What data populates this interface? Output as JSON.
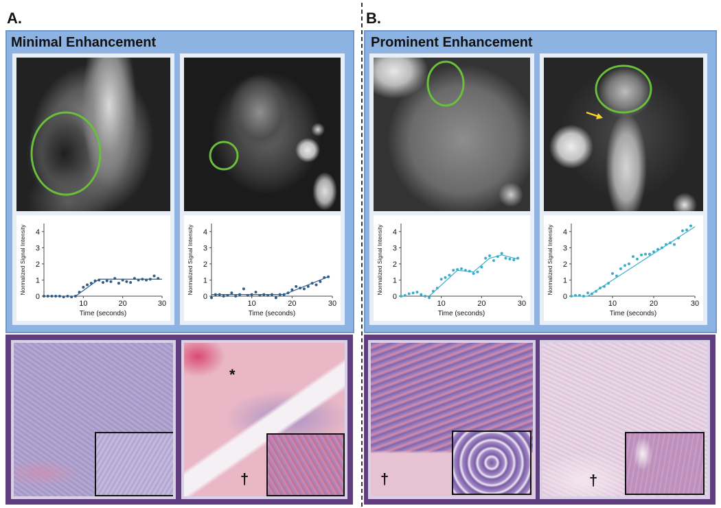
{
  "panels": [
    {
      "letter": "A.",
      "title": "Minimal Enhancement"
    },
    {
      "letter": "B.",
      "title": "Prominent Enhancement"
    }
  ],
  "graph_axes": {
    "ylabel": "Normalized Signal Intensity",
    "xlabel": "Time (seconds)",
    "xticks": [
      "10",
      "20",
      "30"
    ],
    "yticks": [
      "0",
      "1",
      "2",
      "3",
      "4"
    ]
  },
  "histology_marks": {
    "asterisk": "*",
    "dagger": "†"
  },
  "colors": {
    "mri_panel": "#8db3e2",
    "histo_panel": "#5f3d7e",
    "roi_circle": "#6abf3c",
    "series_dark": "#2e5d8a",
    "series_light": "#3aaecb",
    "arrow": "#f2d72a"
  },
  "chart_data": [
    {
      "type": "scatter",
      "xlabel": "Time (seconds)",
      "ylabel": "Normalized Signal Intensity",
      "xlim": [
        0,
        30
      ],
      "ylim": [
        0,
        4.5
      ],
      "color": "#2e5d8a",
      "x": [
        0,
        1,
        2,
        3,
        4,
        5,
        6,
        7,
        8,
        9,
        10,
        11,
        12,
        13,
        14,
        15,
        16,
        17,
        18,
        19,
        20,
        21,
        22,
        23,
        24,
        25,
        26,
        27,
        28,
        29
      ],
      "values": [
        0,
        0,
        0,
        0,
        0,
        -0.05,
        0,
        -0.05,
        0,
        0.25,
        0.55,
        0.7,
        0.8,
        0.95,
        1.0,
        0.85,
        0.95,
        0.9,
        1.1,
        0.8,
        1.0,
        0.9,
        0.85,
        1.1,
        1.0,
        1.05,
        1.0,
        1.05,
        1.25,
        1.1
      ],
      "fit": [
        [
          8,
          0
        ],
        [
          14,
          1.05
        ],
        [
          30,
          1.05
        ]
      ]
    },
    {
      "type": "scatter",
      "xlabel": "Time (seconds)",
      "ylabel": "Normalized Signal Intensity",
      "xlim": [
        0,
        30
      ],
      "ylim": [
        0,
        4.5
      ],
      "color": "#2e5d8a",
      "x": [
        0,
        1,
        2,
        3,
        4,
        5,
        6,
        7,
        8,
        9,
        10,
        11,
        12,
        13,
        14,
        15,
        16,
        17,
        18,
        19,
        20,
        21,
        22,
        23,
        24,
        25,
        26,
        27,
        28,
        29
      ],
      "values": [
        -0.1,
        0.1,
        0.1,
        0,
        0.05,
        0.2,
        0,
        0.1,
        0.45,
        0.05,
        0.1,
        0.25,
        0.05,
        0.1,
        0.05,
        0.1,
        -0.1,
        0.1,
        0.1,
        0.2,
        0.4,
        0.6,
        0.5,
        0.45,
        0.6,
        0.8,
        0.7,
        0.9,
        1.15,
        1.2
      ],
      "fit": [
        [
          0,
          0.1
        ],
        [
          18,
          0.1
        ],
        [
          29,
          1.2
        ]
      ]
    },
    {
      "type": "scatter",
      "xlabel": "Time (seconds)",
      "ylabel": "Normalized Signal Intensity",
      "xlim": [
        0,
        30
      ],
      "ylim": [
        0,
        4.5
      ],
      "color": "#3aaecb",
      "x": [
        0,
        1,
        2,
        3,
        4,
        5,
        6,
        7,
        8,
        9,
        10,
        11,
        12,
        13,
        14,
        15,
        16,
        17,
        18,
        19,
        20,
        21,
        22,
        23,
        24,
        25,
        26,
        27,
        28,
        29
      ],
      "values": [
        0,
        0.05,
        0.15,
        0.2,
        0.25,
        0.1,
        0,
        -0.1,
        0.3,
        0.5,
        1.05,
        1.15,
        1.3,
        1.6,
        1.65,
        1.7,
        1.6,
        1.55,
        1.4,
        1.5,
        1.8,
        2.35,
        2.5,
        2.2,
        2.45,
        2.65,
        2.35,
        2.3,
        2.25,
        2.35
      ],
      "fit": [
        [
          7,
          0
        ],
        [
          14,
          1.6
        ],
        [
          18,
          1.5
        ],
        [
          22,
          2.35
        ],
        [
          25,
          2.55
        ],
        [
          29,
          2.3
        ]
      ]
    },
    {
      "type": "scatter",
      "xlabel": "Time (seconds)",
      "ylabel": "Normalized Signal Intensity",
      "xlim": [
        0,
        30
      ],
      "ylim": [
        0,
        4.5
      ],
      "color": "#3aaecb",
      "x": [
        0,
        1,
        2,
        3,
        4,
        5,
        6,
        7,
        8,
        9,
        10,
        11,
        12,
        13,
        14,
        15,
        16,
        17,
        18,
        19,
        20,
        21,
        22,
        23,
        24,
        25,
        26,
        27,
        28,
        29
      ],
      "values": [
        0,
        0.05,
        0.05,
        0,
        0.2,
        0.15,
        0.3,
        0.5,
        0.6,
        0.8,
        1.4,
        1.25,
        1.7,
        1.9,
        2.0,
        2.45,
        2.3,
        2.55,
        2.6,
        2.6,
        2.75,
        2.9,
        3.0,
        3.2,
        3.3,
        3.2,
        3.6,
        4.05,
        4.1,
        4.35
      ],
      "fit": [
        [
          0,
          0
        ],
        [
          4,
          0
        ],
        [
          30,
          4.3
        ]
      ]
    }
  ]
}
